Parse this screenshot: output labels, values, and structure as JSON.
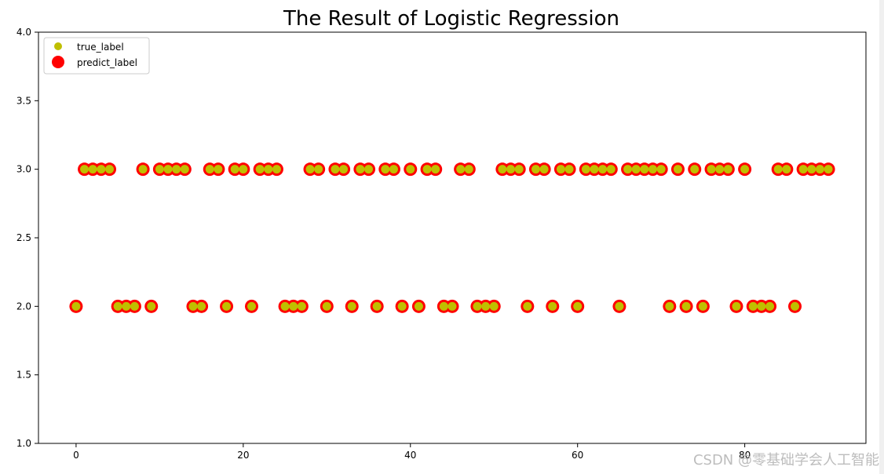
{
  "chart_data": {
    "type": "scatter",
    "title": "The Result of Logistic Regression",
    "xlabel": "",
    "ylabel": "",
    "xlim": [
      -4.5,
      94.5
    ],
    "ylim": [
      1.0,
      4.0
    ],
    "xticks": [
      0,
      20,
      40,
      60,
      80
    ],
    "xtick_labels": [
      "0",
      "20",
      "40",
      "60",
      "80"
    ],
    "yticks": [
      1.0,
      1.5,
      2.0,
      2.5,
      3.0,
      3.5,
      4.0
    ],
    "ytick_labels": [
      "1.0",
      "1.5",
      "2.0",
      "2.5",
      "3.0",
      "3.5",
      "4.0"
    ],
    "grid": false,
    "legend_position": "top-left",
    "series": [
      {
        "name": "true_label",
        "color": "#bfbf00",
        "marker": "small-circle",
        "x": [
          0,
          1,
          2,
          3,
          4,
          5,
          6,
          7,
          8,
          9,
          10,
          11,
          12,
          13,
          14,
          15,
          16,
          17,
          18,
          19,
          20,
          21,
          22,
          23,
          24,
          25,
          26,
          27,
          28,
          29,
          30,
          31,
          32,
          33,
          34,
          35,
          36,
          37,
          38,
          39,
          40,
          41,
          42,
          43,
          44,
          45,
          46,
          47,
          48,
          49,
          50,
          51,
          52,
          53,
          54,
          55,
          56,
          57,
          58,
          59,
          60,
          61,
          62,
          63,
          64,
          65,
          66,
          67,
          68,
          69,
          70,
          71,
          72,
          73,
          74,
          75,
          76,
          77,
          78,
          79,
          80,
          81,
          82,
          83,
          84,
          85,
          86,
          87,
          88,
          89,
          90
        ],
        "y": [
          2,
          3,
          3,
          3,
          3,
          2,
          2,
          2,
          3,
          2,
          3,
          3,
          3,
          3,
          2,
          2,
          3,
          3,
          2,
          3,
          3,
          2,
          3,
          3,
          3,
          2,
          2,
          2,
          3,
          3,
          2,
          3,
          3,
          2,
          3,
          3,
          2,
          3,
          3,
          2,
          3,
          2,
          3,
          3,
          2,
          2,
          3,
          3,
          2,
          2,
          2,
          3,
          3,
          3,
          2,
          3,
          3,
          2,
          3,
          3,
          2,
          3,
          3,
          3,
          3,
          2,
          3,
          3,
          3,
          3,
          3,
          2,
          3,
          2,
          3,
          2,
          3,
          3,
          3,
          2,
          3,
          2,
          2,
          2,
          3,
          3,
          2,
          3,
          3,
          3,
          3
        ]
      },
      {
        "name": "predict_label",
        "color": "#ff0000",
        "marker": "large-circle",
        "x": [
          0,
          1,
          2,
          3,
          4,
          5,
          6,
          7,
          8,
          9,
          10,
          11,
          12,
          13,
          14,
          15,
          16,
          17,
          18,
          19,
          20,
          21,
          22,
          23,
          24,
          25,
          26,
          27,
          28,
          29,
          30,
          31,
          32,
          33,
          34,
          35,
          36,
          37,
          38,
          39,
          40,
          41,
          42,
          43,
          44,
          45,
          46,
          47,
          48,
          49,
          50,
          51,
          52,
          53,
          54,
          55,
          56,
          57,
          58,
          59,
          60,
          61,
          62,
          63,
          64,
          65,
          66,
          67,
          68,
          69,
          70,
          71,
          72,
          73,
          74,
          75,
          76,
          77,
          78,
          79,
          80,
          81,
          82,
          83,
          84,
          85,
          86,
          87,
          88,
          89,
          90
        ],
        "y": [
          2,
          3,
          3,
          3,
          3,
          2,
          2,
          2,
          3,
          2,
          3,
          3,
          3,
          3,
          2,
          2,
          3,
          3,
          2,
          3,
          3,
          2,
          3,
          3,
          3,
          2,
          2,
          2,
          3,
          3,
          2,
          3,
          3,
          2,
          3,
          3,
          2,
          3,
          3,
          2,
          3,
          2,
          3,
          3,
          2,
          2,
          3,
          3,
          2,
          2,
          2,
          3,
          3,
          3,
          2,
          3,
          3,
          2,
          3,
          3,
          2,
          3,
          3,
          3,
          3,
          2,
          3,
          3,
          3,
          3,
          3,
          2,
          3,
          2,
          3,
          2,
          3,
          3,
          3,
          2,
          3,
          2,
          2,
          2,
          3,
          3,
          2,
          3,
          3,
          3,
          3
        ]
      }
    ]
  },
  "watermark": "CSDN @零基础学会人工智能"
}
